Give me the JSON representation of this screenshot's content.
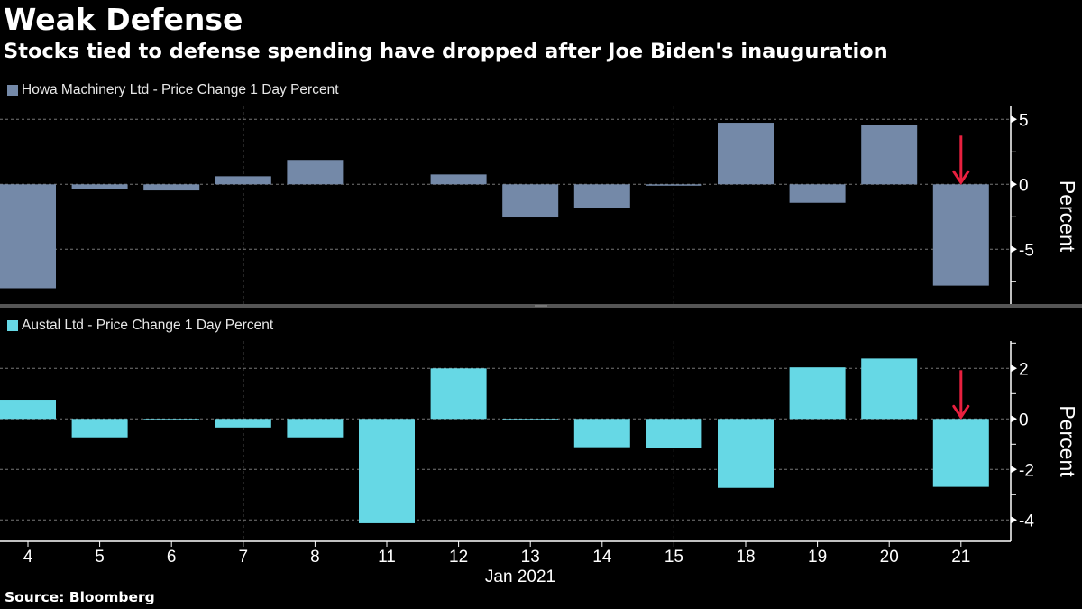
{
  "header": {
    "title": "Weak Defense",
    "subtitle": "Stocks tied to defense spending have dropped after Joe Biden's inauguration"
  },
  "source": "Source: Bloomberg",
  "colors": {
    "howa": "#7489a8",
    "austal": "#66d8e5",
    "arrow": "#e8203f",
    "grid": "#777777",
    "axis": "#ffffff"
  },
  "chart_data": [
    {
      "type": "bar",
      "title": "Howa Machinery Ltd - Price Change 1 Day Percent",
      "legend": "Howa Machinery Ltd - Price Change 1 Day Percent",
      "categories": [
        "4",
        "5",
        "6",
        "7",
        "8",
        "11",
        "12",
        "13",
        "14",
        "15",
        "18",
        "19",
        "20",
        "21"
      ],
      "values": [
        -8.0,
        -0.35,
        -0.47,
        0.62,
        1.88,
        0.0,
        0.76,
        -2.55,
        -1.85,
        -0.1,
        4.74,
        -1.42,
        4.58,
        -7.8
      ],
      "ylabel": "Percent",
      "xlabel": "Jan 2021",
      "ylim": [
        -9.3,
        6.0
      ],
      "yticks": [
        5,
        0,
        -5
      ],
      "ytick_labels": [
        "5",
        "0",
        "-5"
      ],
      "grid": true,
      "annotation": {
        "type": "arrow",
        "category": "21",
        "direction": "down"
      }
    },
    {
      "type": "bar",
      "title": "Austal Ltd - Price Change 1 Day Percent",
      "legend": "Austal Ltd - Price Change 1 Day Percent",
      "categories": [
        "4",
        "5",
        "6",
        "7",
        "8",
        "11",
        "12",
        "13",
        "14",
        "15",
        "18",
        "19",
        "20",
        "21"
      ],
      "values": [
        0.76,
        -0.73,
        -0.05,
        -0.34,
        -0.73,
        -4.13,
        2.0,
        -0.05,
        -1.12,
        -1.16,
        -2.73,
        2.04,
        2.39,
        -2.69
      ],
      "ylabel": "Percent",
      "xlabel": "Jan 2021",
      "ylim": [
        -4.9,
        3.0
      ],
      "yticks": [
        2,
        0,
        -2,
        -4
      ],
      "ytick_labels": [
        "2",
        "0",
        "-2",
        "-4"
      ],
      "grid": true,
      "annotation": {
        "type": "arrow",
        "category": "21",
        "direction": "down"
      }
    }
  ],
  "xaxis": {
    "tick_labels": [
      "4",
      "5",
      "6",
      "7",
      "8",
      "11",
      "12",
      "13",
      "14",
      "15",
      "18",
      "19",
      "20",
      "21"
    ],
    "label": "Jan 2021"
  }
}
